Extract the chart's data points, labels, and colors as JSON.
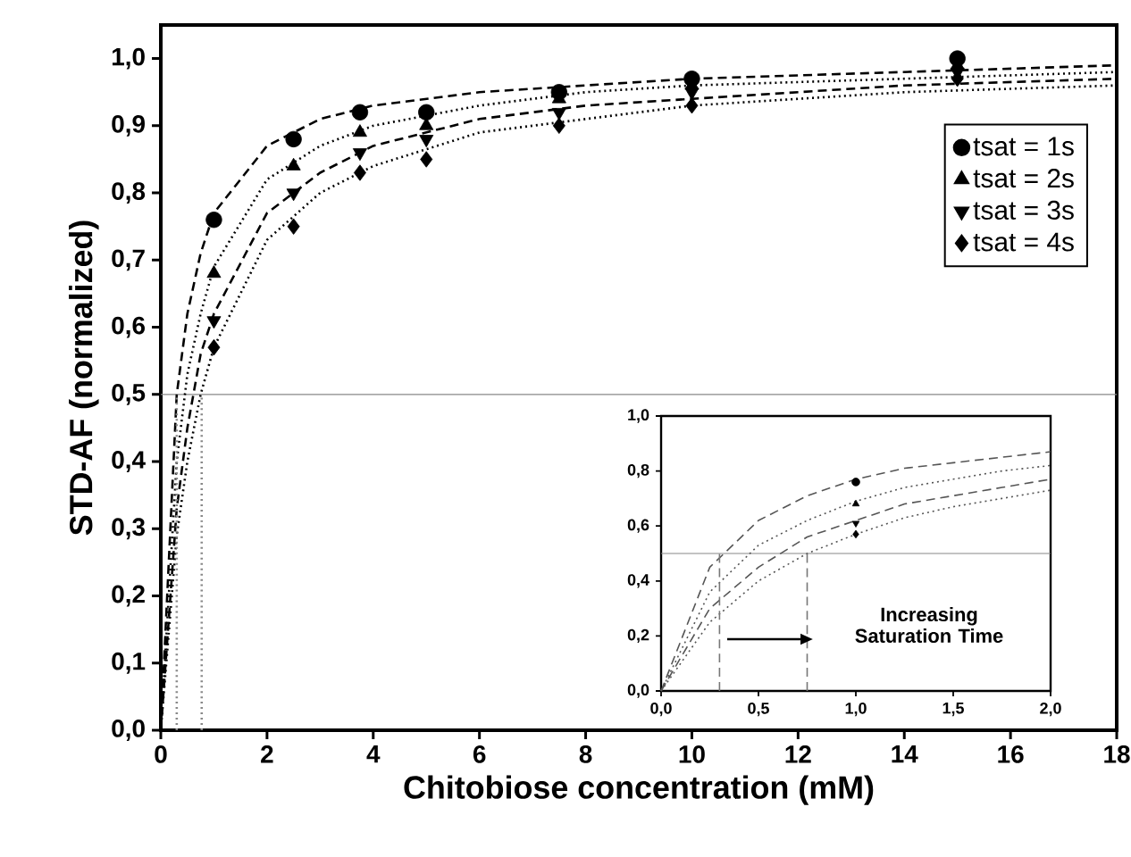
{
  "chart_data": [
    {
      "type": "scatter",
      "xlabel": "Chitobiose concentration (mM)",
      "ylabel": "STD-AF (normalized)",
      "xlim": [
        0,
        18
      ],
      "ylim": [
        0,
        1.05
      ],
      "xticks": [
        0,
        2,
        4,
        6,
        8,
        10,
        12,
        14,
        16,
        18
      ],
      "yticks": [
        {
          "value": 0,
          "label": "0,0"
        },
        {
          "value": 0.1,
          "label": "0,1"
        },
        {
          "value": 0.2,
          "label": "0,2"
        },
        {
          "value": 0.3,
          "label": "0,3"
        },
        {
          "value": 0.4,
          "label": "0,4"
        },
        {
          "value": 0.5,
          "label": "0,5"
        },
        {
          "value": 0.6,
          "label": "0,6"
        },
        {
          "value": 0.7,
          "label": "0,7"
        },
        {
          "value": 0.8,
          "label": "0,8"
        },
        {
          "value": 0.9,
          "label": "0,9"
        },
        {
          "value": 1.0,
          "label": "1,0"
        }
      ],
      "x": [
        1,
        2.5,
        3.75,
        5,
        7.5,
        10,
        15
      ],
      "legend": "top right",
      "grid": false,
      "series": [
        {
          "name": "tsat = 1s",
          "color": "#000000",
          "marker": "circle",
          "values": [
            0.76,
            0.88,
            0.92,
            0.92,
            0.95,
            0.97,
            1.0
          ]
        },
        {
          "name": "tsat = 2s",
          "color": "#000000",
          "marker": "triangle",
          "values": [
            0.68,
            0.84,
            0.89,
            0.9,
            0.94,
            0.96,
            0.99
          ]
        },
        {
          "name": "tsat = 3s",
          "color": "#000000",
          "marker": "triangle-down",
          "values": [
            0.61,
            0.8,
            0.86,
            0.88,
            0.92,
            0.95,
            0.98
          ]
        },
        {
          "name": "tsat = 4s",
          "color": "#000000",
          "marker": "diamond",
          "values": [
            0.57,
            0.75,
            0.83,
            0.85,
            0.9,
            0.93,
            0.97
          ]
        },
        {
          "type": "line",
          "color": "#000000",
          "line_style": "dashed",
          "x": [
            0,
            0.3,
            0.5,
            0.75,
            1,
            2,
            3,
            4,
            6,
            8,
            10,
            14,
            18
          ],
          "values": [
            0,
            0.5,
            0.62,
            0.71,
            0.77,
            0.87,
            0.91,
            0.93,
            0.95,
            0.96,
            0.97,
            0.98,
            0.99
          ]
        },
        {
          "type": "line",
          "color": "#000000",
          "line_style": "dotted",
          "x": [
            0,
            0.3,
            0.5,
            0.75,
            1,
            2,
            3,
            4,
            6,
            8,
            10,
            14,
            18
          ],
          "values": [
            0,
            0.4,
            0.53,
            0.62,
            0.69,
            0.82,
            0.87,
            0.9,
            0.93,
            0.95,
            0.96,
            0.97,
            0.98
          ]
        },
        {
          "type": "line",
          "color": "#000000",
          "line_style": "dashed",
          "x": [
            0,
            0.3,
            0.5,
            0.75,
            1,
            2,
            3,
            4,
            6,
            8,
            10,
            14,
            18
          ],
          "values": [
            0,
            0.33,
            0.45,
            0.56,
            0.62,
            0.77,
            0.83,
            0.87,
            0.91,
            0.93,
            0.94,
            0.96,
            0.97
          ]
        },
        {
          "type": "line",
          "color": "#000000",
          "line_style": "dotted",
          "x": [
            0,
            0.3,
            0.5,
            0.75,
            1,
            2,
            3,
            4,
            6,
            8,
            10,
            14,
            18
          ],
          "values": [
            0,
            0.29,
            0.4,
            0.5,
            0.57,
            0.73,
            0.8,
            0.84,
            0.89,
            0.91,
            0.93,
            0.95,
            0.96
          ]
        },
        {
          "type": "line",
          "color": "#888888",
          "line_style": "dotted",
          "x": [
            0.3,
            0.3
          ],
          "values": [
            0,
            0.5
          ]
        },
        {
          "type": "line",
          "color": "#888888",
          "line_style": "dotted",
          "x": [
            0.77,
            0.77
          ],
          "values": [
            0,
            0.5
          ]
        }
      ],
      "ref_lines": [
        {
          "axis": "y",
          "value": 0.5,
          "color": "#888888"
        }
      ]
    },
    {
      "type": "line",
      "xlim": [
        0,
        2
      ],
      "ylim": [
        0,
        1
      ],
      "xticks": [
        {
          "value": 0,
          "label": "0,0"
        },
        {
          "value": 0.5,
          "label": "0,5"
        },
        {
          "value": 1,
          "label": "1,0"
        },
        {
          "value": 1.5,
          "label": "1,5"
        },
        {
          "value": 2,
          "label": "2,0"
        }
      ],
      "yticks": [
        {
          "value": 0,
          "label": "0,0"
        },
        {
          "value": 0.2,
          "label": "0,2"
        },
        {
          "value": 0.4,
          "label": "0,4"
        },
        {
          "value": 0.6,
          "label": "0,6"
        },
        {
          "value": 0.8,
          "label": "0,8"
        },
        {
          "value": 1,
          "label": "1,0"
        }
      ],
      "x": [
        0,
        0.25,
        0.5,
        0.75,
        1,
        1.25,
        1.5,
        1.75,
        2
      ],
      "grid": false,
      "annotations": [
        "Increasing Saturation Time"
      ],
      "series": [
        {
          "color": "#555555",
          "line_style": "dashed",
          "values": [
            0,
            0.45,
            0.62,
            0.71,
            0.77,
            0.81,
            0.83,
            0.85,
            0.87
          ]
        },
        {
          "color": "#555555",
          "line_style": "dotted",
          "values": [
            0,
            0.36,
            0.53,
            0.62,
            0.69,
            0.74,
            0.77,
            0.8,
            0.82
          ]
        },
        {
          "color": "#555555",
          "line_style": "dashed",
          "values": [
            0,
            0.3,
            0.45,
            0.56,
            0.62,
            0.68,
            0.71,
            0.74,
            0.77
          ]
        },
        {
          "color": "#555555",
          "line_style": "dotted",
          "values": [
            0,
            0.25,
            0.4,
            0.5,
            0.57,
            0.63,
            0.67,
            0.7,
            0.73
          ]
        },
        {
          "type": "scatter",
          "color": "#000000",
          "marker": "circle",
          "x": [
            1
          ],
          "values": [
            0.76
          ]
        },
        {
          "type": "scatter",
          "color": "#000000",
          "marker": "triangle",
          "x": [
            1
          ],
          "values": [
            0.68
          ]
        },
        {
          "type": "scatter",
          "color": "#000000",
          "marker": "triangle-down",
          "x": [
            1
          ],
          "values": [
            0.61
          ]
        },
        {
          "type": "scatter",
          "color": "#000000",
          "marker": "diamond",
          "x": [
            1
          ],
          "values": [
            0.57
          ]
        },
        {
          "color": "#777777",
          "line_style": "dashed",
          "x": [
            0.3,
            0.3
          ],
          "values": [
            0,
            0.5
          ]
        },
        {
          "color": "#777777",
          "line_style": "dashed",
          "x": [
            0.75,
            0.75
          ],
          "values": [
            0,
            0.5
          ]
        }
      ],
      "ref_lines": [
        {
          "axis": "y",
          "value": 0.5,
          "color": "#888888"
        }
      ]
    }
  ]
}
